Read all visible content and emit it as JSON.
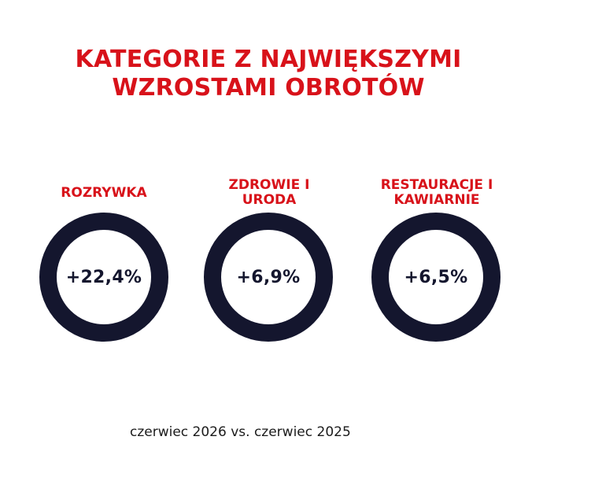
{
  "title": {
    "line1": "KATEGORIE Z NAJWIĘKSZYMI",
    "line2": "WZROSTAMI OBROTÓW"
  },
  "categories": [
    {
      "label_line1": "ROZRYWKA",
      "label_line2": "",
      "value": "+22,4%"
    },
    {
      "label_line1": "ZDROWIE I",
      "label_line2": "URODA",
      "value": "+6,9%"
    },
    {
      "label_line1": "RESTAURACJE I",
      "label_line2": "KAWIARNIE",
      "value": "+6,5%"
    }
  ],
  "footnote": "czerwiec 2026 vs. czerwiec 2025",
  "colors": {
    "accent_red": "#d8121a",
    "ring_navy": "#14162e",
    "background": "#ffffff"
  }
}
